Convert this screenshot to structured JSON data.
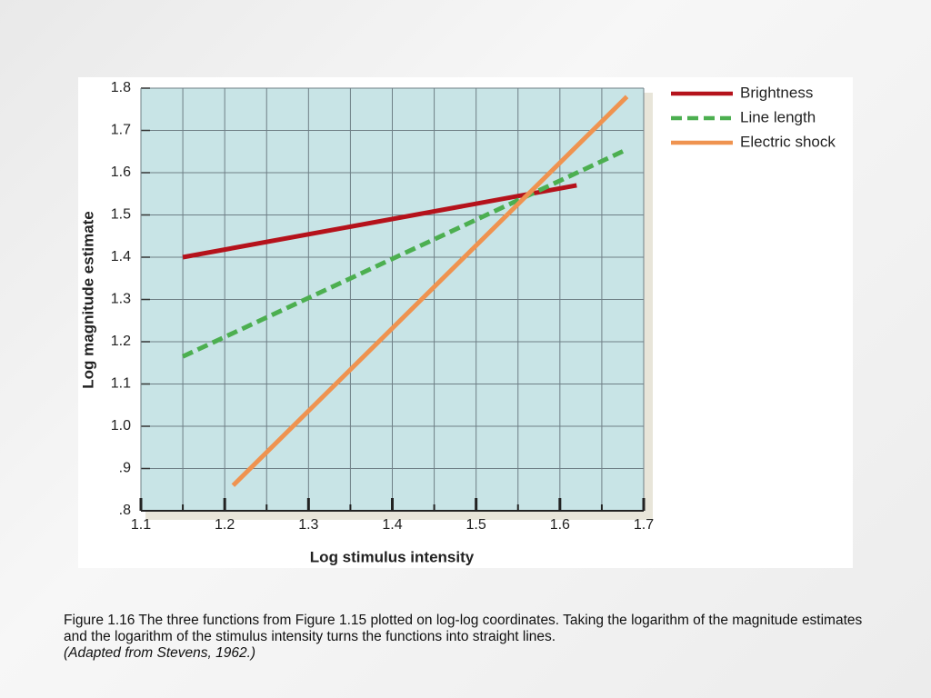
{
  "chart_data": {
    "type": "line",
    "xlabel": "Log stimulus intensity",
    "ylabel": "Log magnitude estimate",
    "xlim": [
      1.1,
      1.7
    ],
    "ylim": [
      0.8,
      1.8
    ],
    "xticks": [
      1.1,
      1.2,
      1.3,
      1.4,
      1.5,
      1.6,
      1.7
    ],
    "yticks": [
      {
        "value": 0.8,
        "label": ".8"
      },
      {
        "value": 0.9,
        "label": ".9"
      },
      {
        "value": 1.0,
        "label": "1.0"
      },
      1.1,
      1.2,
      1.3,
      1.4,
      1.5,
      1.6,
      1.7,
      1.8
    ],
    "grid": true,
    "legend": "right",
    "series": [
      {
        "name": "Brightness",
        "color": "#b5121b",
        "dashed": false,
        "x": [
          1.15,
          1.62
        ],
        "values": [
          1.4,
          1.57
        ]
      },
      {
        "name": "Line length",
        "color": "#4caf50",
        "dashed": true,
        "x": [
          1.15,
          1.68
        ],
        "values": [
          1.165,
          1.655
        ]
      },
      {
        "name": "Electric shock",
        "color": "#ef9350",
        "dashed": false,
        "x": [
          1.21,
          1.68
        ],
        "values": [
          0.86,
          1.78
        ]
      }
    ]
  },
  "caption": {
    "text": "Figure 1.16  The three functions from Figure 1.15 plotted on log-log coordinates.  Taking the logarithm of the magnitude estimates and the logarithm of the stimulus intensity turns the functions into straight lines.",
    "source": "(Adapted from Stevens, 1962.)"
  }
}
